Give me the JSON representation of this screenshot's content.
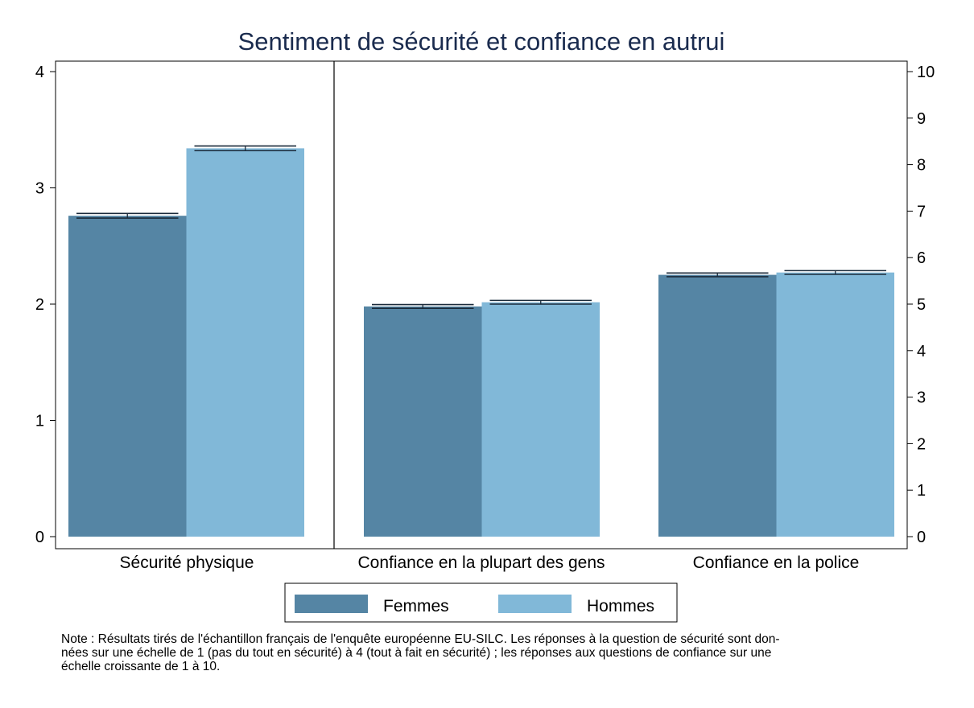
{
  "chart_data": {
    "type": "bar",
    "title": "Sentiment de sécurité et confiance en autrui",
    "categories": [
      "Sécurité physique",
      "Confiance en la plupart des gens",
      "Confiance en la police"
    ],
    "left_axis": {
      "ylim": [
        0,
        4
      ],
      "ticks": [
        "0",
        "1",
        "2",
        "3",
        "4"
      ]
    },
    "right_axis": {
      "ylim": [
        0,
        10
      ],
      "ticks": [
        "0",
        "1",
        "2",
        "3",
        "4",
        "5",
        "6",
        "7",
        "8",
        "9",
        "10"
      ]
    },
    "panels": [
      {
        "category": "Sécurité physique",
        "axis": "left",
        "values": {
          "Femmes": 2.76,
          "Hommes": 3.34
        },
        "ci": {
          "Femmes": [
            2.74,
            2.78
          ],
          "Hommes": [
            3.32,
            3.36
          ]
        }
      },
      {
        "category": "Confiance en la plupart des gens",
        "axis": "right",
        "values": {
          "Femmes": 4.95,
          "Hommes": 5.04
        },
        "ci": {
          "Femmes": [
            4.91,
            4.99
          ],
          "Hommes": [
            5.0,
            5.08
          ]
        }
      },
      {
        "category": "Confiance en la police",
        "axis": "right",
        "values": {
          "Femmes": 5.63,
          "Hommes": 5.68
        },
        "ci": {
          "Femmes": [
            5.59,
            5.67
          ],
          "Hommes": [
            5.64,
            5.72
          ]
        }
      }
    ],
    "series": [
      {
        "name": "Femmes",
        "color": "#5585a4"
      },
      {
        "name": "Hommes",
        "color": "#81b8d8"
      }
    ],
    "legend_position": "bottom",
    "grid": false,
    "title_color": "#1a2b4e"
  },
  "note": {
    "line1": "Note : Résultats tirés de l'échantillon français de l'enquête européenne EU-SILC. Les réponses à la question de sécurité sont don-",
    "line2": "nées sur une échelle de 1 (pas du tout en sécurité) à 4 (tout à fait en sécurité) ;  les réponses aux questions de confiance sur une",
    "line3": "échelle croissante de 1 à 10."
  }
}
